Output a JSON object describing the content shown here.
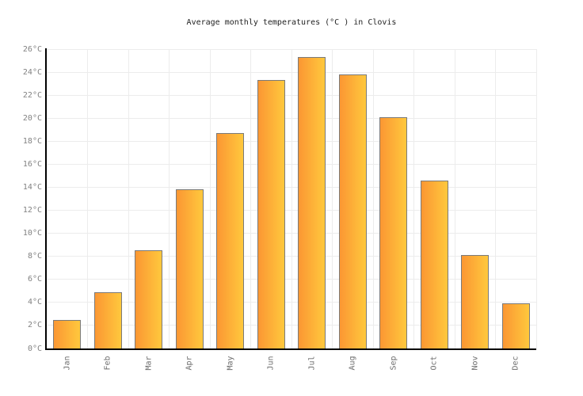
{
  "chart_data": {
    "type": "bar",
    "title": "Average monthly temperatures (°C ) in Clovis",
    "categories": [
      "Jan",
      "Feb",
      "Mar",
      "Apr",
      "May",
      "Jun",
      "Jul",
      "Aug",
      "Sep",
      "Oct",
      "Nov",
      "Dec"
    ],
    "values": [
      2.5,
      4.9,
      8.5,
      13.8,
      18.7,
      23.3,
      25.3,
      23.8,
      20.1,
      14.6,
      8.1,
      3.9
    ],
    "unit": "°C",
    "ylim": [
      0,
      26
    ],
    "ytick_step": 2,
    "ytick_labels": [
      "0°C",
      "2°C",
      "4°C",
      "6°C",
      "8°C",
      "10°C",
      "12°C",
      "14°C",
      "16°C",
      "18°C",
      "20°C",
      "22°C",
      "24°C",
      "26°C"
    ],
    "xlabel": "",
    "ylabel": "",
    "grid": true,
    "legend": "none",
    "colors": {
      "bar_gradient_left": "#fb9733",
      "bar_gradient_right": "#ffc83d",
      "bar_border": "#7a7a7a",
      "gridline": "#ececec",
      "axis": "#000000",
      "title_text": "#222222",
      "ytick_text": "#828282",
      "xtick_text": "#6e6e6e",
      "background": "#ffffff"
    }
  }
}
